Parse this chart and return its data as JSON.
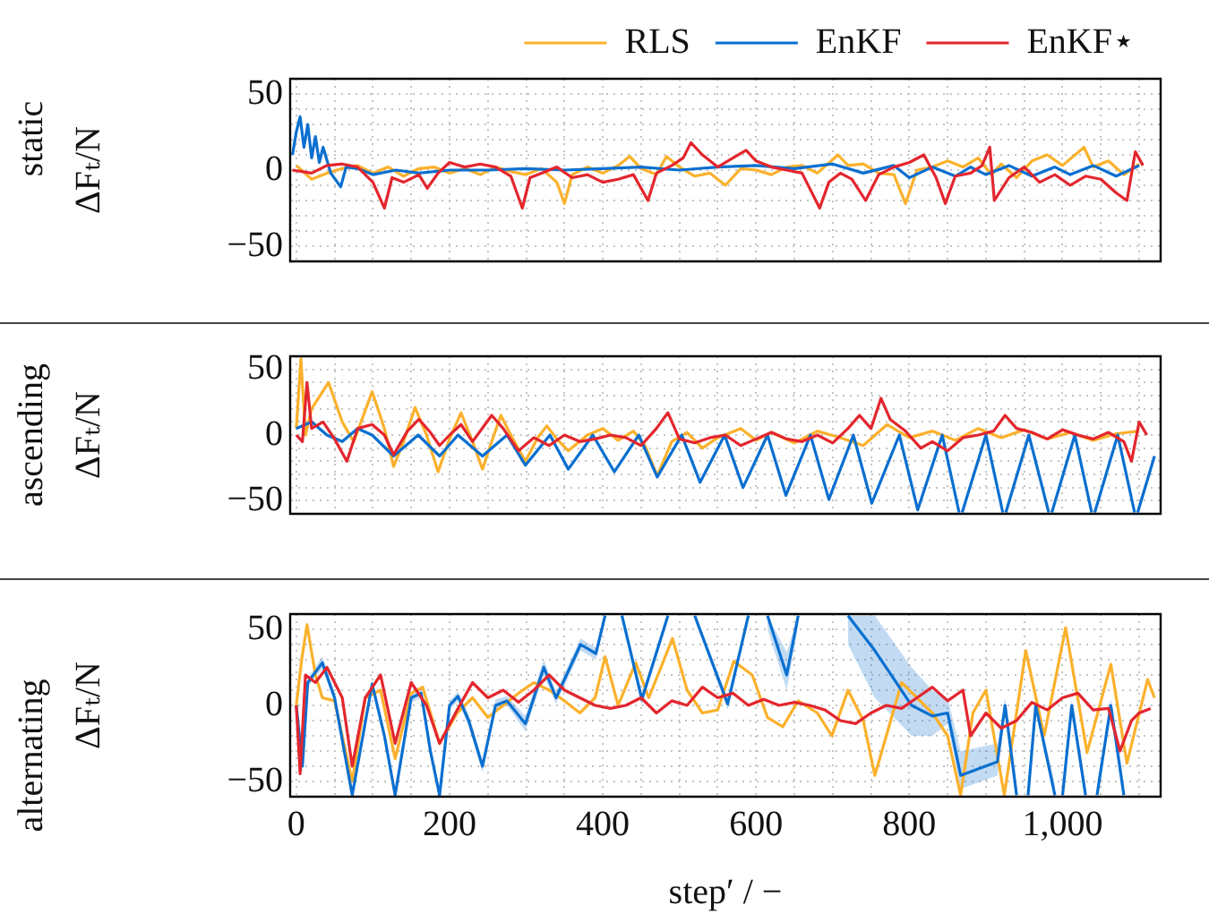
{
  "chart_data": [
    {
      "type": "line",
      "title": "static",
      "ylabel": "ΔFₜ/N",
      "xlim": [
        -8,
        1128
      ],
      "ylim": [
        -60,
        60
      ],
      "grid": true,
      "legend": "top right",
      "marker": "none",
      "tick_labels": "y",
      "xticks": [
        {
          "value": 0,
          "label": null
        },
        {
          "value": 50,
          "label": null
        },
        {
          "value": 100,
          "label": null
        },
        {
          "value": 150,
          "label": null
        },
        {
          "value": 200,
          "label": null
        },
        {
          "value": 250,
          "label": null
        },
        {
          "value": 300,
          "label": null
        },
        {
          "value": 350,
          "label": null
        },
        {
          "value": 400,
          "label": null
        },
        {
          "value": 450,
          "label": null
        },
        {
          "value": 500,
          "label": null
        },
        {
          "value": 550,
          "label": null
        },
        {
          "value": 600,
          "label": null
        },
        {
          "value": 650,
          "label": null
        },
        {
          "value": 700,
          "label": null
        },
        {
          "value": 750,
          "label": null
        },
        {
          "value": 800,
          "label": null
        },
        {
          "value": 850,
          "label": null
        },
        {
          "value": 900,
          "label": null
        },
        {
          "value": 950,
          "label": null
        },
        {
          "value": 1000,
          "label": null
        },
        {
          "value": 1050,
          "label": null
        },
        {
          "value": 1100,
          "label": null
        }
      ],
      "yticks": [
        {
          "value": -50,
          "label": "−50"
        },
        {
          "value": -40,
          "label": null
        },
        {
          "value": -30,
          "label": null
        },
        {
          "value": -20,
          "label": null
        },
        {
          "value": -10,
          "label": null
        },
        {
          "value": 0,
          "label": "0"
        },
        {
          "value": 10,
          "label": null
        },
        {
          "value": 20,
          "label": null
        },
        {
          "value": 30,
          "label": null
        },
        {
          "value": 40,
          "label": null
        },
        {
          "value": 50,
          "label": "50"
        }
      ],
      "series": [
        {
          "name": "RLS",
          "color": "#fbb12c",
          "x": [
            0,
            20,
            40,
            60,
            80,
            100,
            120,
            140,
            160,
            180,
            200,
            220,
            240,
            260,
            280,
            300,
            320,
            340,
            350,
            360,
            380,
            400,
            420,
            435,
            450,
            470,
            483,
            500,
            520,
            540,
            560,
            580,
            600,
            620,
            640,
            660,
            680,
            707,
            720,
            740,
            760,
            780,
            795,
            810,
            830,
            850,
            870,
            890,
            907,
            920,
            940,
            960,
            980,
            1000,
            1028,
            1040,
            1060,
            1080,
            1100
          ],
          "values": [
            3,
            -6,
            -2,
            1,
            3,
            -2,
            2,
            -4,
            1,
            2,
            -2,
            1,
            -3,
            2,
            -1,
            -3,
            1,
            -8,
            -22,
            -3,
            2,
            -2,
            3,
            9,
            1,
            -3,
            9,
            2,
            -4,
            -2,
            -10,
            1,
            0,
            -3,
            2,
            3,
            -2,
            10,
            3,
            4,
            -2,
            -3,
            -22,
            0,
            2,
            6,
            2,
            8,
            -3,
            4,
            -5,
            6,
            10,
            3,
            15,
            2,
            6,
            -3,
            4
          ]
        },
        {
          "name": "EnKF",
          "color": "#0a6fd0",
          "x": [
            -5,
            0,
            5,
            10,
            15,
            20,
            25,
            30,
            35,
            45,
            58,
            65,
            80,
            100,
            130,
            160,
            200,
            250,
            300,
            350,
            400,
            450,
            500,
            550,
            600,
            650,
            700,
            740,
            780,
            800,
            830,
            860,
            880,
            900,
            930,
            960,
            990,
            1010,
            1040,
            1070,
            1100
          ],
          "values": [
            10,
            25,
            35,
            15,
            30,
            8,
            22,
            5,
            15,
            -2,
            -11,
            2,
            1,
            -3,
            0,
            -2,
            0,
            0,
            1,
            0,
            1,
            2,
            0,
            2,
            3,
            1,
            4,
            -2,
            3,
            -5,
            2,
            -4,
            2,
            -3,
            3,
            -4,
            2,
            -3,
            3,
            -4,
            3
          ]
        },
        {
          "name": "EnKF⋆",
          "color": "#e3262e",
          "x": [
            -5,
            20,
            40,
            60,
            80,
            100,
            115,
            125,
            140,
            160,
            171,
            185,
            200,
            220,
            240,
            260,
            280,
            295,
            305,
            320,
            340,
            360,
            380,
            400,
            420,
            440,
            459,
            470,
            490,
            505,
            515,
            530,
            550,
            570,
            587,
            600,
            620,
            640,
            660,
            683,
            695,
            710,
            725,
            743,
            760,
            780,
            800,
            819,
            835,
            847,
            860,
            880,
            895,
            905,
            911,
            930,
            950,
            970,
            990,
            1010,
            1030,
            1050,
            1070,
            1084,
            1095,
            1105
          ],
          "values": [
            0,
            -2,
            3,
            4,
            2,
            -8,
            -25,
            -5,
            -8,
            -3,
            -12,
            -2,
            5,
            2,
            4,
            2,
            -4,
            -25,
            -5,
            -2,
            2,
            -5,
            -3,
            -8,
            -6,
            -3,
            -20,
            -2,
            3,
            8,
            18,
            10,
            2,
            8,
            13,
            6,
            2,
            0,
            -2,
            -25,
            -8,
            -2,
            -6,
            -20,
            -3,
            2,
            5,
            10,
            -5,
            -22,
            -4,
            -2,
            3,
            15,
            -20,
            -5,
            2,
            -8,
            -3,
            -10,
            -4,
            -6,
            -15,
            -20,
            12,
            3
          ]
        }
      ]
    },
    {
      "type": "line",
      "title": "ascending",
      "ylabel": "ΔFₜ/N",
      "xlim": [
        -8,
        1128
      ],
      "ylim": [
        -60,
        60
      ],
      "grid": true,
      "marker": "none",
      "tick_labels": "y",
      "xticks": [
        {
          "value": 0,
          "label": null
        },
        {
          "value": 50,
          "label": null
        },
        {
          "value": 100,
          "label": null
        },
        {
          "value": 150,
          "label": null
        },
        {
          "value": 200,
          "label": null
        },
        {
          "value": 250,
          "label": null
        },
        {
          "value": 300,
          "label": null
        },
        {
          "value": 350,
          "label": null
        },
        {
          "value": 400,
          "label": null
        },
        {
          "value": 450,
          "label": null
        },
        {
          "value": 500,
          "label": null
        },
        {
          "value": 550,
          "label": null
        },
        {
          "value": 600,
          "label": null
        },
        {
          "value": 650,
          "label": null
        },
        {
          "value": 700,
          "label": null
        },
        {
          "value": 750,
          "label": null
        },
        {
          "value": 800,
          "label": null
        },
        {
          "value": 850,
          "label": null
        },
        {
          "value": 900,
          "label": null
        },
        {
          "value": 950,
          "label": null
        },
        {
          "value": 1000,
          "label": null
        },
        {
          "value": 1050,
          "label": null
        },
        {
          "value": 1100,
          "label": null
        }
      ],
      "yticks": [
        {
          "value": -50,
          "label": "−50"
        },
        {
          "value": -40,
          "label": null
        },
        {
          "value": -30,
          "label": null
        },
        {
          "value": -20,
          "label": null
        },
        {
          "value": -10,
          "label": null
        },
        {
          "value": 0,
          "label": "0"
        },
        {
          "value": 10,
          "label": null
        },
        {
          "value": 20,
          "label": null
        },
        {
          "value": 30,
          "label": null
        },
        {
          "value": 40,
          "label": null
        },
        {
          "value": 50,
          "label": "50"
        }
      ],
      "series": [
        {
          "color": "#fbb12c",
          "x": [
            0,
            6,
            12,
            20,
            42,
            60,
            75,
            99,
            115,
            127,
            140,
            155,
            170,
            185,
            200,
            215,
            230,
            243,
            255,
            267,
            280,
            299,
            315,
            327,
            340,
            355,
            380,
            400,
            420,
            440,
            455,
            471,
            490,
            510,
            530,
            550,
            580,
            600,
            620,
            650,
            680,
            710,
            740,
            771,
            800,
            830,
            860,
            890,
            920,
            950,
            980,
            1010,
            1040,
            1070,
            1100
          ],
          "values": [
            5,
            58,
            0,
            20,
            40,
            10,
            -5,
            33,
            5,
            -24,
            -5,
            21,
            0,
            -28,
            -3,
            17,
            -5,
            -26,
            -5,
            15,
            0,
            -20,
            -2,
            7,
            -3,
            -12,
            0,
            5,
            -4,
            3,
            -8,
            -31,
            -5,
            2,
            -10,
            -2,
            5,
            -4,
            2,
            -6,
            3,
            -2,
            -8,
            8,
            -2,
            3,
            -4,
            5,
            -2,
            4,
            -3,
            2,
            -4,
            1,
            3
          ]
        },
        {
          "color": "#0a6fd0",
          "x": [
            0,
            20,
            40,
            60,
            80,
            99,
            127,
            159,
            187,
            211,
            243,
            275,
            299,
            331,
            355,
            387,
            415,
            447,
            471,
            503,
            527,
            559,
            583,
            615,
            639,
            671,
            695,
            727,
            751,
            787,
            811,
            843,
            865,
            867,
            869,
            900,
            922,
            924,
            926,
            956,
            982,
            984,
            986,
            1016,
            1038,
            1040,
            1042,
            1072,
            1094,
            1096,
            1098,
            1120
          ],
          "values": [
            5,
            10,
            0,
            -5,
            5,
            0,
            -16,
            0,
            -16,
            0,
            -16,
            0,
            -23,
            0,
            -26,
            0,
            -28,
            0,
            -32,
            0,
            -36,
            0,
            -40,
            0,
            -46,
            0,
            -49,
            0,
            -52,
            0,
            -57,
            0,
            -59,
            null,
            -59,
            0,
            -59,
            null,
            -59,
            0,
            -59,
            null,
            -59,
            0,
            -59,
            null,
            -59,
            0,
            -59,
            null,
            -59,
            -16
          ]
        },
        {
          "color": "#e3262e",
          "x": [
            0,
            8,
            14,
            20,
            35,
            50,
            66,
            80,
            99,
            115,
            127,
            145,
            160,
            175,
            187,
            200,
            215,
            230,
            255,
            270,
            290,
            310,
            330,
            350,
            370,
            390,
            410,
            430,
            450,
            470,
            485,
            500,
            520,
            540,
            560,
            580,
            600,
            620,
            640,
            660,
            680,
            700,
            720,
            735,
            750,
            763,
            775,
            795,
            815,
            830,
            850,
            870,
            890,
            910,
            925,
            940,
            960,
            980,
            1000,
            1020,
            1040,
            1060,
            1080,
            1090,
            1100,
            1110
          ],
          "values": [
            0,
            -5,
            40,
            5,
            10,
            -3,
            -20,
            5,
            8,
            0,
            -15,
            3,
            12,
            2,
            -8,
            0,
            8,
            -5,
            15,
            5,
            -12,
            -2,
            -8,
            0,
            -5,
            -3,
            0,
            -2,
            -8,
            5,
            17,
            -3,
            -6,
            -2,
            0,
            -8,
            -3,
            2,
            -3,
            -5,
            0,
            -6,
            5,
            15,
            5,
            28,
            12,
            3,
            -10,
            -5,
            -12,
            -2,
            0,
            3,
            15,
            5,
            2,
            -3,
            4,
            0,
            -3,
            2,
            -5,
            -20,
            10,
            0
          ]
        }
      ]
    },
    {
      "type": "line",
      "title": "alternating",
      "ylabel": "ΔFₜ/N",
      "xlabel": "step′ / −",
      "xlim": [
        -8,
        1128
      ],
      "ylim": [
        -60,
        60
      ],
      "grid": true,
      "marker": "none",
      "xticks": [
        0,
        {
          "value": 50,
          "label": null
        },
        {
          "value": 100,
          "label": null
        },
        {
          "value": 150,
          "label": null
        },
        200,
        {
          "value": 250,
          "label": null
        },
        {
          "value": 300,
          "label": null
        },
        {
          "value": 350,
          "label": null
        },
        400,
        {
          "value": 450,
          "label": null
        },
        {
          "value": 500,
          "label": null
        },
        {
          "value": 550,
          "label": null
        },
        600,
        {
          "value": 650,
          "label": null
        },
        {
          "value": 700,
          "label": null
        },
        {
          "value": 750,
          "label": null
        },
        800,
        {
          "value": 850,
          "label": null
        },
        {
          "value": 900,
          "label": null
        },
        {
          "value": 950,
          "label": null
        },
        {
          "value": 1000,
          "label": "1,000"
        },
        {
          "value": 1050,
          "label": null
        },
        {
          "value": 1100,
          "label": null
        }
      ],
      "yticks": [
        {
          "value": -50,
          "label": "−50"
        },
        {
          "value": -40,
          "label": null
        },
        {
          "value": -30,
          "label": null
        },
        {
          "value": -20,
          "label": null
        },
        {
          "value": -10,
          "label": null
        },
        {
          "value": 0,
          "label": "0"
        },
        {
          "value": 10,
          "label": null
        },
        {
          "value": 20,
          "label": null
        },
        {
          "value": 30,
          "label": null
        },
        {
          "value": 40,
          "label": null
        },
        {
          "value": 50,
          "label": "50"
        }
      ],
      "series": [
        {
          "color": "#fbb12c",
          "x": [
            0,
            7,
            14,
            25,
            34,
            50,
            73,
            90,
            110,
            129,
            150,
            165,
            187,
            210,
            230,
            250,
            270,
            290,
            310,
            330,
            350,
            370,
            390,
            403,
            420,
            443,
            460,
            491,
            510,
            530,
            550,
            571,
            595,
            615,
            635,
            655,
            680,
            699,
            720,
            740,
            755,
            770,
            790,
            810,
            830,
            850,
            867,
            883,
            900,
            924,
            952,
            976,
            1004,
            1032,
            1063,
            1084,
            1111,
            1120
          ],
          "values": [
            0,
            30,
            53,
            20,
            5,
            3,
            -50,
            5,
            10,
            -35,
            8,
            12,
            -25,
            -5,
            5,
            -8,
            0,
            8,
            15,
            10,
            3,
            -5,
            5,
            32,
            0,
            28,
            5,
            44,
            10,
            -5,
            -3,
            29,
            20,
            -8,
            -14,
            3,
            -5,
            -20,
            10,
            -10,
            -46,
            -20,
            15,
            5,
            -5,
            -20,
            -59,
            -5,
            10,
            -59,
            36,
            -20,
            51,
            -31,
            27,
            -38,
            17,
            5
          ]
        },
        {
          "color": "#0a6fd0",
          "x": [
            0,
            8,
            15,
            34,
            50,
            73,
            99,
            115,
            129,
            150,
            163,
            175,
            187,
            200,
            211,
            225,
            243,
            260,
            275,
            299,
            323,
            339,
            371,
            391,
            403,
            410,
            425,
            451,
            485,
            495,
            520,
            563,
            590,
            600,
            615,
            640,
            655,
            670,
            720,
            755,
            803,
            830,
            850,
            867,
            915,
            925,
            940,
            947,
            955,
            965,
            990,
            995,
            1000,
            1012,
            1030,
            1037,
            1045,
            1063,
            1080
          ],
          "values": [
            0,
            -40,
            15,
            28,
            5,
            -59,
            14,
            -20,
            -59,
            5,
            8,
            -30,
            -59,
            0,
            6,
            -10,
            -40,
            0,
            3,
            -12,
            25,
            5,
            40,
            34,
            59,
            null,
            59,
            4,
            59,
            null,
            59,
            1,
            59,
            null,
            59,
            20,
            59,
            null,
            59,
            36,
            0,
            -7,
            -5,
            -46,
            -37,
            0,
            -59,
            null,
            -59,
            0,
            -59,
            null,
            -59,
            0,
            -59,
            null,
            -59,
            0,
            -59
          ],
          "lower": [
            -3,
            -45,
            12,
            24,
            2,
            -59,
            11,
            -24,
            -59,
            2,
            5,
            -34,
            -59,
            -3,
            3,
            -14,
            -44,
            -4,
            0,
            -17,
            20,
            1,
            36,
            30,
            56,
            null,
            56,
            0,
            56,
            null,
            56,
            -3,
            56,
            null,
            50,
            10,
            52,
            null,
            40,
            5,
            -20,
            -20,
            -12,
            -55,
            -46,
            -5,
            -59,
            null,
            -59,
            -4,
            -59,
            null,
            -59,
            -4,
            -59,
            null,
            -59,
            -4,
            -59
          ],
          "upper": [
            3,
            -35,
            18,
            32,
            8,
            -55,
            17,
            -16,
            -55,
            8,
            11,
            -26,
            -55,
            3,
            9,
            -6,
            -36,
            4,
            6,
            -7,
            30,
            9,
            44,
            38,
            59,
            null,
            59,
            8,
            59,
            null,
            59,
            5,
            59,
            null,
            59,
            35,
            59,
            null,
            59,
            59,
            25,
            10,
            5,
            -30,
            -25,
            5,
            -50,
            null,
            -52,
            4,
            -52,
            null,
            -52,
            4,
            -52,
            null,
            -52,
            4,
            -52
          ]
        },
        {
          "color": "#e3262e",
          "x": [
            0,
            5,
            12,
            25,
            40,
            60,
            73,
            90,
            110,
            129,
            150,
            170,
            187,
            210,
            230,
            250,
            270,
            290,
            310,
            330,
            350,
            370,
            390,
            410,
            430,
            450,
            470,
            490,
            510,
            530,
            550,
            570,
            590,
            610,
            630,
            650,
            670,
            690,
            710,
            730,
            750,
            770,
            790,
            810,
            830,
            850,
            870,
            880,
            900,
            920,
            940,
            960,
            980,
            1000,
            1020,
            1040,
            1060,
            1075,
            1090,
            1100,
            1115
          ],
          "values": [
            0,
            -45,
            20,
            15,
            25,
            5,
            -40,
            5,
            20,
            -25,
            15,
            0,
            -25,
            -3,
            15,
            5,
            10,
            2,
            10,
            20,
            10,
            5,
            0,
            -2,
            0,
            5,
            -5,
            3,
            0,
            12,
            5,
            8,
            0,
            4,
            0,
            2,
            0,
            -3,
            -10,
            -12,
            -5,
            0,
            -2,
            5,
            12,
            3,
            10,
            -20,
            -5,
            -15,
            -10,
            2,
            -3,
            5,
            8,
            -3,
            -2,
            -30,
            -10,
            -5,
            -2
          ]
        }
      ]
    }
  ]
}
